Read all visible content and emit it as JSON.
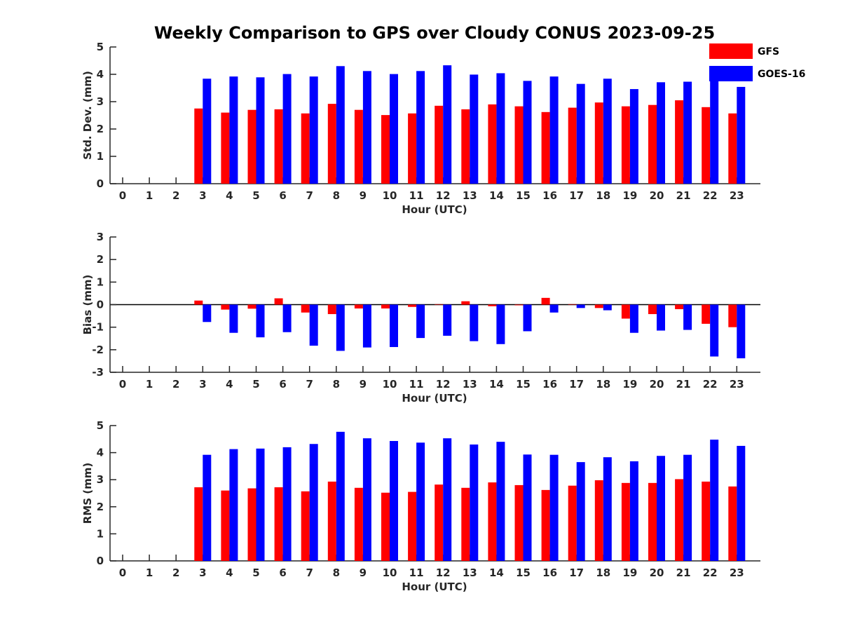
{
  "title": "Weekly Comparison to GPS over Cloudy CONUS 2023-09-25",
  "legend": [
    {
      "name": "GFS",
      "color": "#ff0000"
    },
    {
      "name": "GOES-16",
      "color": "#0000ff"
    }
  ],
  "chart_data": [
    {
      "type": "bar",
      "title": "Weekly Comparison to GPS over Cloudy CONUS 2023-09-25",
      "xlabel": "Hour (UTC)",
      "ylabel": "Std. Dev. (mm)",
      "ylim": [
        0,
        5
      ],
      "yticks": [
        0,
        1,
        2,
        3,
        4,
        5
      ],
      "categories": [
        0,
        1,
        2,
        3,
        4,
        5,
        6,
        7,
        8,
        9,
        10,
        11,
        12,
        13,
        14,
        15,
        16,
        17,
        18,
        19,
        20,
        21,
        22,
        23
      ],
      "legend_position": "top-right",
      "series": [
        {
          "name": "GFS",
          "color": "#ff0000",
          "values": [
            null,
            null,
            null,
            2.75,
            2.6,
            2.7,
            2.72,
            2.57,
            2.92,
            2.7,
            2.51,
            2.57,
            2.85,
            2.72,
            2.9,
            2.83,
            2.62,
            2.78,
            2.97,
            2.83,
            2.88,
            3.05,
            2.8,
            2.57
          ]
        },
        {
          "name": "GOES-16",
          "color": "#0000ff",
          "values": [
            null,
            null,
            null,
            3.84,
            3.92,
            3.89,
            4.01,
            3.92,
            4.3,
            4.12,
            4.01,
            4.12,
            4.33,
            3.99,
            4.04,
            3.76,
            3.92,
            3.65,
            3.84,
            3.46,
            3.71,
            3.73,
            3.8,
            3.54
          ]
        }
      ]
    },
    {
      "type": "bar",
      "xlabel": "Hour (UTC)",
      "ylabel": "Bias (mm)",
      "ylim": [
        -3,
        3
      ],
      "yticks": [
        -3,
        -2,
        -1,
        0,
        1,
        2,
        3
      ],
      "categories": [
        0,
        1,
        2,
        3,
        4,
        5,
        6,
        7,
        8,
        9,
        10,
        11,
        12,
        13,
        14,
        15,
        16,
        17,
        18,
        19,
        20,
        21,
        22,
        23
      ],
      "series": [
        {
          "name": "GFS",
          "color": "#ff0000",
          "values": [
            null,
            null,
            null,
            0.18,
            -0.22,
            -0.18,
            0.28,
            -0.35,
            -0.42,
            -0.17,
            -0.17,
            -0.1,
            0.02,
            0.15,
            -0.07,
            -0.03,
            0.3,
            0.02,
            -0.15,
            -0.62,
            -0.42,
            -0.2,
            -0.85,
            -1.0
          ]
        },
        {
          "name": "GOES-16",
          "color": "#0000ff",
          "values": [
            null,
            null,
            null,
            -0.77,
            -1.25,
            -1.45,
            -1.22,
            -1.82,
            -2.05,
            -1.9,
            -1.88,
            -1.48,
            -1.38,
            -1.62,
            -1.75,
            -1.18,
            -0.35,
            -0.15,
            -0.25,
            -1.25,
            -1.15,
            -1.12,
            -2.3,
            -2.38
          ]
        }
      ]
    },
    {
      "type": "bar",
      "xlabel": "Hour (UTC)",
      "ylabel": "RMS (mm)",
      "ylim": [
        0,
        5
      ],
      "yticks": [
        0,
        1,
        2,
        3,
        4,
        5
      ],
      "categories": [
        0,
        1,
        2,
        3,
        4,
        5,
        6,
        7,
        8,
        9,
        10,
        11,
        12,
        13,
        14,
        15,
        16,
        17,
        18,
        19,
        20,
        21,
        22,
        23
      ],
      "series": [
        {
          "name": "GFS",
          "color": "#ff0000",
          "values": [
            null,
            null,
            null,
            2.72,
            2.6,
            2.68,
            2.72,
            2.57,
            2.93,
            2.7,
            2.52,
            2.55,
            2.82,
            2.7,
            2.9,
            2.8,
            2.62,
            2.78,
            2.98,
            2.88,
            2.88,
            3.02,
            2.93,
            2.75
          ]
        },
        {
          "name": "GOES-16",
          "color": "#0000ff",
          "values": [
            null,
            null,
            null,
            3.92,
            4.13,
            4.15,
            4.2,
            4.32,
            4.77,
            4.53,
            4.43,
            4.37,
            4.53,
            4.3,
            4.4,
            3.93,
            3.92,
            3.65,
            3.83,
            3.68,
            3.88,
            3.92,
            4.48,
            4.25
          ]
        }
      ]
    }
  ]
}
